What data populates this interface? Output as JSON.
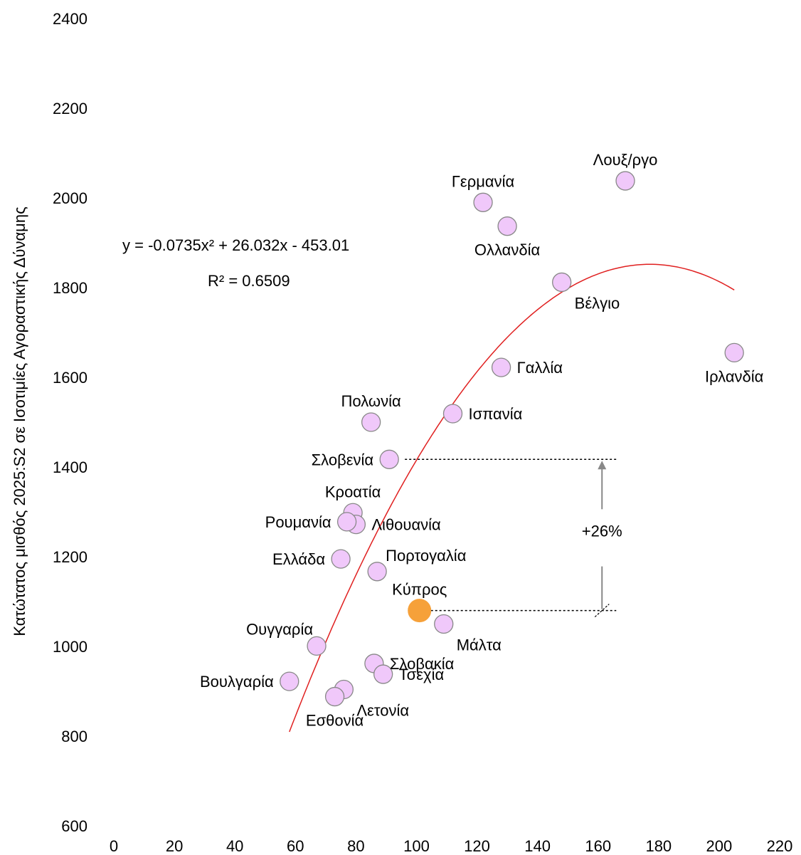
{
  "chart_data": {
    "type": "scatter",
    "title": "",
    "xlabel": "",
    "ylabel": "Κατώτατος μισθός 2025:S2 σε Ισοτιμίες Αγοραστικής Δύναμης",
    "xlim": [
      0,
      220
    ],
    "ylim": [
      600,
      2400
    ],
    "x_ticks": [
      "0",
      "20",
      "40",
      "60",
      "80",
      "100",
      "120",
      "140",
      "160",
      "180",
      "200",
      "220"
    ],
    "y_ticks": [
      "2400",
      "2200",
      "2000",
      "1800",
      "1600",
      "1400",
      "1200",
      "1000",
      "800",
      "600"
    ],
    "grid": false,
    "colors": {
      "point": "#f0c8fa",
      "point_stroke": "#888888",
      "highlight": "#f6a13a",
      "trend": "#e02020"
    },
    "points": [
      {
        "name": "Λουξ/ργο",
        "x": 169,
        "y": 2038,
        "label_pos": "above"
      },
      {
        "name": "Γερμανία",
        "x": 122,
        "y": 1990,
        "label_pos": "above"
      },
      {
        "name": "Ολλανδία",
        "x": 130,
        "y": 1937,
        "label_pos": "below"
      },
      {
        "name": "Βέλγιο",
        "x": 148,
        "y": 1812,
        "label_pos": "below-right"
      },
      {
        "name": "Ιρλανδία",
        "x": 205,
        "y": 1655,
        "label_pos": "below"
      },
      {
        "name": "Γαλλία",
        "x": 128,
        "y": 1622,
        "label_pos": "right"
      },
      {
        "name": "Ισπανία",
        "x": 112,
        "y": 1519,
        "label_pos": "right"
      },
      {
        "name": "Πολωνία",
        "x": 85,
        "y": 1500,
        "label_pos": "above"
      },
      {
        "name": "Σλοβενία",
        "x": 91,
        "y": 1417,
        "label_pos": "left"
      },
      {
        "name": "Κροατία",
        "x": 79,
        "y": 1298,
        "label_pos": "above"
      },
      {
        "name": "Λιθουανία",
        "x": 80,
        "y": 1272,
        "label_pos": "right"
      },
      {
        "name": "Ρουμανία",
        "x": 77,
        "y": 1278,
        "label_pos": "left"
      },
      {
        "name": "Ελλάδα",
        "x": 75,
        "y": 1195,
        "label_pos": "left"
      },
      {
        "name": "Πορτογαλία",
        "x": 87,
        "y": 1167,
        "label_pos": "above-right"
      },
      {
        "name": "Κύπρος",
        "x": 101,
        "y": 1080,
        "label_pos": "above",
        "highlight": true
      },
      {
        "name": "Μάλτα",
        "x": 109,
        "y": 1050,
        "label_pos": "below-right"
      },
      {
        "name": "Ουγγαρία",
        "x": 67,
        "y": 1001,
        "label_pos": "above-left"
      },
      {
        "name": "Σλοβακία",
        "x": 86,
        "y": 962,
        "label_pos": "right"
      },
      {
        "name": "Τσεχία",
        "x": 89,
        "y": 938,
        "label_pos": "right"
      },
      {
        "name": "Βουλγαρία",
        "x": 58,
        "y": 922,
        "label_pos": "left"
      },
      {
        "name": "Λετονία",
        "x": 76,
        "y": 904,
        "label_pos": "below-right"
      },
      {
        "name": "Εσθονία",
        "x": 73,
        "y": 888,
        "label_pos": "below"
      }
    ],
    "trendline": {
      "type": "polynomial",
      "coefficients": [
        -0.0735,
        26.032,
        -453.01
      ],
      "x_range": [
        58,
        205
      ],
      "equation_text": "y = -0.0735x² + 26.032x - 453.01",
      "r2_text": "R² = 0.6509"
    },
    "annotation": {
      "label": "+26%",
      "from": {
        "x": 101,
        "y": 1080
      },
      "to": {
        "x": 91,
        "y": 1417
      },
      "line_end_x": 166
    }
  }
}
